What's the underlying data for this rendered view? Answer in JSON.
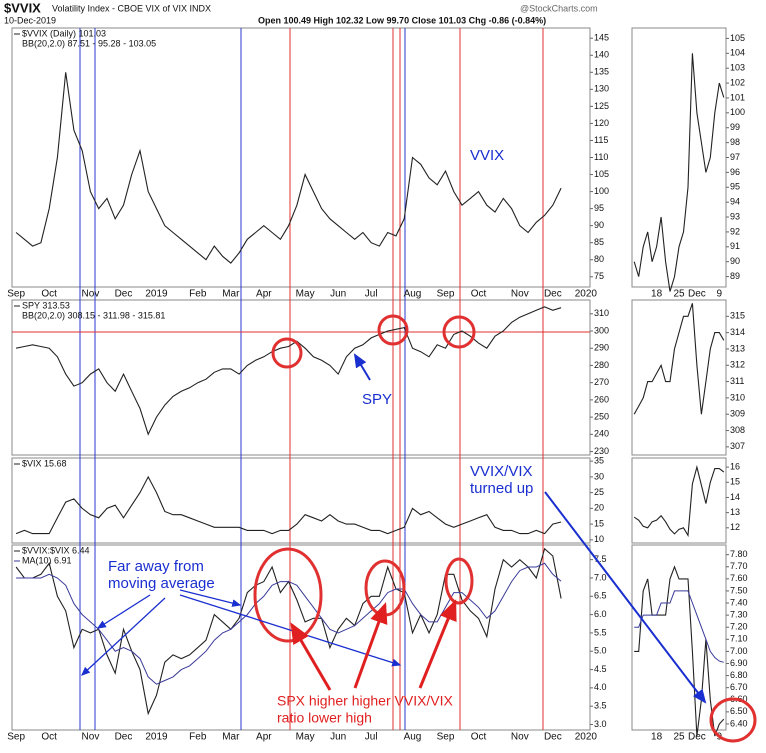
{
  "header": {
    "title": "$VVIX",
    "subtitle": "Volatility Index - CBOE VIX of VIX INDX",
    "date": "10-Dec-2019",
    "quote": "Open 100.49 High 102.32 Low 99.70 Close 101.03 Chg -0.86 (-0.84%)",
    "source": "@StockCharts.com"
  },
  "chart_data": [
    {
      "type": "line",
      "indicator": "BB(20,2.0) 87.51 - 95.28 - 103.05",
      "annotations": [
        [
          "VVIX"
        ]
      ],
      "categories": [
        "Sep",
        null,
        null,
        null,
        "Oct",
        null,
        null,
        null,
        null,
        "Nov",
        null,
        null,
        null,
        "Dec",
        null,
        null,
        null,
        "2019",
        null,
        null,
        null,
        null,
        "Feb",
        null,
        null,
        null,
        "Mar",
        null,
        null,
        null,
        "Apr",
        null,
        null,
        null,
        null,
        "May",
        null,
        null,
        null,
        "Jun",
        null,
        null,
        null,
        "Jul",
        null,
        null,
        null,
        null,
        "Aug",
        null,
        null,
        null,
        "Sep",
        null,
        null,
        null,
        "Oct",
        null,
        null,
        null,
        null,
        "Nov",
        null,
        null,
        null,
        "Dec",
        null,
        null,
        null,
        "2020"
      ],
      "series": [
        {
          "name": "$VVIX (Daily) 101.03",
          "color": "#222222",
          "values": [
            88,
            86,
            84,
            85,
            95,
            110,
            135,
            118,
            112,
            100,
            95,
            98,
            92,
            96,
            105,
            112,
            100,
            95,
            90,
            88,
            86,
            84,
            82,
            80,
            84,
            81,
            79,
            82,
            86,
            88,
            90,
            88,
            86,
            90,
            96,
            105,
            100,
            95,
            92,
            90,
            88,
            86,
            88,
            85,
            84,
            88,
            87,
            92,
            110,
            108,
            104,
            102,
            106,
            100,
            96,
            98,
            100,
            96,
            94,
            98,
            95,
            90,
            88,
            91,
            93,
            96,
            101.03,
            null,
            null,
            null
          ]
        }
      ],
      "ylim": [
        72,
        148
      ],
      "yticks": [
        75,
        80,
        85,
        90,
        95,
        100,
        105,
        110,
        115,
        120,
        125,
        130,
        135,
        140,
        145
      ]
    },
    {
      "type": "line",
      "categories": [
        null,
        null,
        null,
        null,
        null,
        "18",
        null,
        null,
        null,
        null,
        "25",
        null,
        null,
        null,
        "Dec",
        null,
        null,
        null,
        null,
        "9",
        null
      ],
      "series": [
        {
          "color": "#222222",
          "values": [
            90,
            89,
            91,
            92,
            90,
            91,
            93,
            90,
            88,
            89,
            91,
            92,
            95,
            104,
            100,
            98,
            96,
            97,
            100,
            102,
            101.03
          ]
        }
      ],
      "ylim": [
        88.3,
        105.7
      ],
      "yticks": [
        89,
        90,
        91,
        92,
        93,
        94,
        95,
        96,
        97,
        98,
        99,
        100,
        101,
        102,
        103,
        104,
        105
      ]
    },
    {
      "type": "line",
      "indicator": "BB(20,2.0) 308.15 - 311.98 - 315.81",
      "annotations": [
        [
          "SPY"
        ]
      ],
      "series": [
        {
          "name": "SPY 313.53",
          "color": "#222222",
          "values": [
            290,
            291,
            292,
            291,
            290,
            285,
            275,
            268,
            270,
            275,
            278,
            270,
            265,
            275,
            265,
            255,
            240,
            250,
            257,
            262,
            265,
            267,
            270,
            272,
            276,
            278,
            278,
            275,
            280,
            283,
            285,
            288,
            290,
            291,
            294,
            290,
            285,
            283,
            280,
            275,
            285,
            290,
            292,
            296,
            298,
            300,
            301,
            302,
            290,
            288,
            285,
            292,
            290,
            298,
            300,
            297,
            293,
            290,
            297,
            300,
            305,
            308,
            310,
            312,
            314,
            312,
            313.53,
            null,
            null,
            null
          ]
        }
      ],
      "ylim": [
        228,
        318
      ],
      "yticks": [
        230,
        240,
        250,
        260,
        270,
        280,
        290,
        300,
        310
      ]
    },
    {
      "type": "line",
      "series": [
        {
          "color": "#222222",
          "values": [
            309,
            309.5,
            310,
            311,
            311,
            311.5,
            312,
            311,
            311,
            313,
            314,
            315,
            315,
            315.8,
            312,
            309,
            311,
            313,
            314,
            314,
            313.53
          ]
        }
      ],
      "ylim": [
        306.5,
        316
      ],
      "yticks": [
        307,
        308,
        309,
        310,
        311,
        312,
        313,
        314,
        315
      ]
    },
    {
      "type": "line",
      "annotations": [
        [
          "VVIX/VIX",
          "turned up"
        ]
      ],
      "series": [
        {
          "name": "$VIX 15.68",
          "color": "#222222",
          "values": [
            12,
            13,
            12,
            12,
            12,
            17,
            22,
            23,
            20,
            18,
            17,
            20,
            21,
            17,
            21,
            25,
            30,
            25,
            19,
            18,
            18,
            17,
            16,
            15,
            14,
            14,
            14,
            14,
            13,
            13,
            13,
            12,
            13,
            13,
            15,
            18,
            17,
            16,
            18,
            16,
            15,
            15,
            14,
            13,
            13,
            12,
            13,
            14,
            20,
            18,
            19,
            17,
            15,
            14,
            15,
            16,
            17,
            18,
            14,
            13,
            13,
            12,
            12,
            13,
            12,
            15,
            15.68,
            null,
            null,
            null
          ]
        }
      ],
      "ylim": [
        9,
        36
      ],
      "yticks": [
        10,
        15,
        20,
        25,
        30,
        35
      ]
    },
    {
      "type": "line",
      "series": [
        {
          "color": "#222222",
          "values": [
            12.7,
            12.5,
            12.1,
            12,
            12.4,
            12.5,
            12.8,
            12.4,
            11.9,
            11.6,
            11.9,
            12,
            11.5,
            14.9,
            16,
            14.8,
            13.6,
            15,
            15.9,
            15.9,
            15.68
          ]
        }
      ],
      "ylim": [
        11,
        16.6
      ],
      "yticks": [
        12,
        13,
        14,
        15,
        16
      ]
    },
    {
      "type": "line",
      "annotations": [
        [
          "Far away from",
          "moving average"
        ],
        [
          "SPX higher higher VVIX/VIX",
          "ratio lower high"
        ]
      ],
      "categories": [
        "Sep",
        null,
        null,
        null,
        "Oct",
        null,
        null,
        null,
        null,
        "Nov",
        null,
        null,
        null,
        "Dec",
        null,
        null,
        null,
        "2019",
        null,
        null,
        null,
        null,
        "Feb",
        null,
        null,
        null,
        "Mar",
        null,
        null,
        null,
        "Apr",
        null,
        null,
        null,
        null,
        "May",
        null,
        null,
        null,
        "Jun",
        null,
        null,
        null,
        "Jul",
        null,
        null,
        null,
        null,
        "Aug",
        null,
        null,
        null,
        "Sep",
        null,
        null,
        null,
        "Oct",
        null,
        null,
        null,
        null,
        "Nov",
        null,
        null,
        null,
        "Dec",
        null,
        null,
        null,
        "2020"
      ],
      "series": [
        {
          "name": "$VVIX:$VIX 6.44",
          "color": "#222222",
          "values": [
            7.3,
            7,
            7,
            7.1,
            7.4,
            6.5,
            6.1,
            5.1,
            5.6,
            5.5,
            5.6,
            4.9,
            4.4,
            5.6,
            5,
            4.5,
            3.3,
            3.8,
            4.7,
            4.9,
            4.8,
            4.9,
            5.1,
            5.3,
            6,
            5.8,
            5.6,
            5.9,
            6.6,
            6.8,
            6.9,
            7.3,
            6.6,
            6.9,
            6.4,
            5.8,
            5.9,
            5.9,
            5.1,
            5.6,
            5.9,
            5.7,
            6.3,
            6.5,
            6.5,
            7.3,
            6.7,
            6.6,
            5.5,
            6,
            5.5,
            6,
            7.1,
            7.1,
            6.4,
            6.1,
            5.9,
            5.4,
            6.7,
            7.5,
            7.3,
            7.5,
            7.3,
            7,
            7.8,
            7.6,
            6.44,
            null,
            null,
            null
          ]
        },
        {
          "name": "MA(10) 6.91",
          "color": "#3a3a9a",
          "values": [
            7,
            7,
            7,
            7,
            7.1,
            7,
            6.8,
            6.3,
            6,
            5.8,
            5.6,
            5.3,
            5,
            5.1,
            5,
            4.8,
            4.3,
            4.1,
            4.2,
            4.3,
            4.5,
            4.6,
            4.8,
            5,
            5.3,
            5.5,
            5.6,
            5.8,
            6,
            6.3,
            6.5,
            6.8,
            6.9,
            6.9,
            6.8,
            6.5,
            6.2,
            5.9,
            5.6,
            5.5,
            5.6,
            5.7,
            5.9,
            6.1,
            6.3,
            6.6,
            6.7,
            6.7,
            6.3,
            6,
            5.8,
            5.8,
            6.2,
            6.6,
            6.6,
            6.4,
            6.2,
            5.9,
            6.1,
            6.5,
            6.9,
            7.2,
            7.3,
            7.3,
            7.4,
            7.1,
            6.91,
            null,
            null,
            null
          ]
        }
      ],
      "ylim": [
        2.85,
        7.9
      ],
      "yticks": [
        {
          "value": 3,
          "label": "3.0"
        },
        {
          "value": 3.5,
          "label": "3.5"
        },
        {
          "value": 4,
          "label": "4.0"
        },
        {
          "value": 4.5,
          "label": "4.5"
        },
        {
          "value": 5,
          "label": "5.0"
        },
        {
          "value": 5.5,
          "label": "5.5"
        },
        {
          "value": 6,
          "label": "6.0"
        },
        {
          "value": 6.5,
          "label": "6.5"
        },
        {
          "value": 7,
          "label": "7.0"
        },
        {
          "value": 7.5,
          "label": "7.5"
        }
      ]
    },
    {
      "type": "line",
      "categories": [
        null,
        null,
        null,
        null,
        null,
        "18",
        null,
        null,
        null,
        null,
        "25",
        null,
        null,
        null,
        "Dec",
        null,
        null,
        null,
        null,
        "9",
        null
      ],
      "series": [
        {
          "color": "#222222",
          "values": [
            7,
            7,
            7.5,
            7.6,
            7.3,
            7.3,
            7.3,
            7.3,
            7.6,
            7.7,
            7.6,
            7.6,
            7.6,
            7,
            6.3,
            6.6,
            7.1,
            6.6,
            6.3,
            6.4,
            6.44
          ]
        },
        {
          "color": "#3a3a9a",
          "values": [
            7.2,
            7.2,
            7.3,
            7.3,
            7.3,
            7.3,
            7.4,
            7.4,
            7.4,
            7.5,
            7.5,
            7.5,
            7.5,
            7.4,
            7.3,
            7.2,
            7.1,
            7,
            6.95,
            6.92,
            6.91
          ]
        }
      ],
      "ylim": [
        6.35,
        7.88
      ],
      "yticks": [
        {
          "value": 6.4,
          "label": "6.40"
        },
        {
          "value": 6.5,
          "label": "6.50"
        },
        {
          "value": 6.6,
          "label": "6.60"
        },
        {
          "value": 6.7,
          "label": "6.70"
        },
        {
          "value": 6.8,
          "label": "6.80"
        },
        {
          "value": 6.9,
          "label": "6.90"
        },
        {
          "value": 7,
          "label": "7.00"
        },
        {
          "value": 7.1,
          "label": "7.10"
        },
        {
          "value": 7.2,
          "label": "7.20"
        },
        {
          "value": 7.3,
          "label": "7.30"
        },
        {
          "value": 7.4,
          "label": "7.40"
        },
        {
          "value": 7.5,
          "label": "7.50"
        },
        {
          "value": 7.6,
          "label": "7.60"
        },
        {
          "value": 7.7,
          "label": "7.70"
        },
        {
          "value": 7.8,
          "label": "7.80"
        }
      ]
    }
  ]
}
